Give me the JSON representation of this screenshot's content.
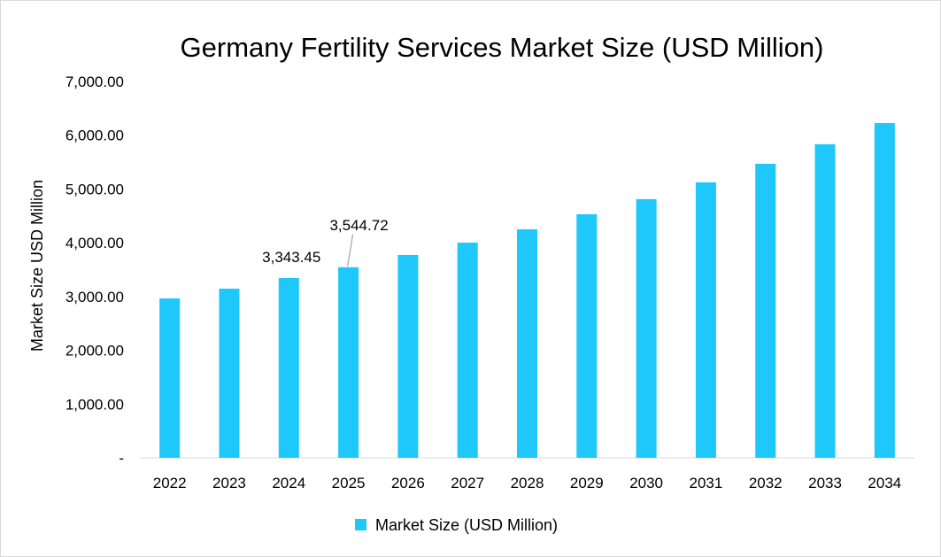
{
  "chart_data": {
    "type": "bar",
    "title": "Germany Fertility Services Market Size (USD Million)",
    "xlabel": "",
    "ylabel": "Market Size USD Million",
    "ylim": [
      0,
      7000
    ],
    "yticks": [
      "-",
      "1,000.00",
      "2,000.00",
      "3,000.00",
      "4,000.00",
      "5,000.00",
      "6,000.00",
      "7,000.00"
    ],
    "ytick_values": [
      0,
      1000,
      2000,
      3000,
      4000,
      5000,
      6000,
      7000
    ],
    "grid": false,
    "legend": "bottom",
    "color": "#1EC8FA",
    "categories": [
      "2022",
      "2023",
      "2024",
      "2025",
      "2026",
      "2027",
      "2028",
      "2029",
      "2030",
      "2031",
      "2032",
      "2033",
      "2034"
    ],
    "series": [
      {
        "name": "Market Size (USD Million)",
        "values": [
          2965,
          3147,
          3343.45,
          3544.72,
          3773,
          4003,
          4250,
          4530,
          4811,
          5124,
          5470,
          5832,
          6227
        ]
      }
    ],
    "data_labels": [
      {
        "category": "2024",
        "text": "3,343.45"
      },
      {
        "category": "2025",
        "text": "3,544.72"
      }
    ]
  }
}
